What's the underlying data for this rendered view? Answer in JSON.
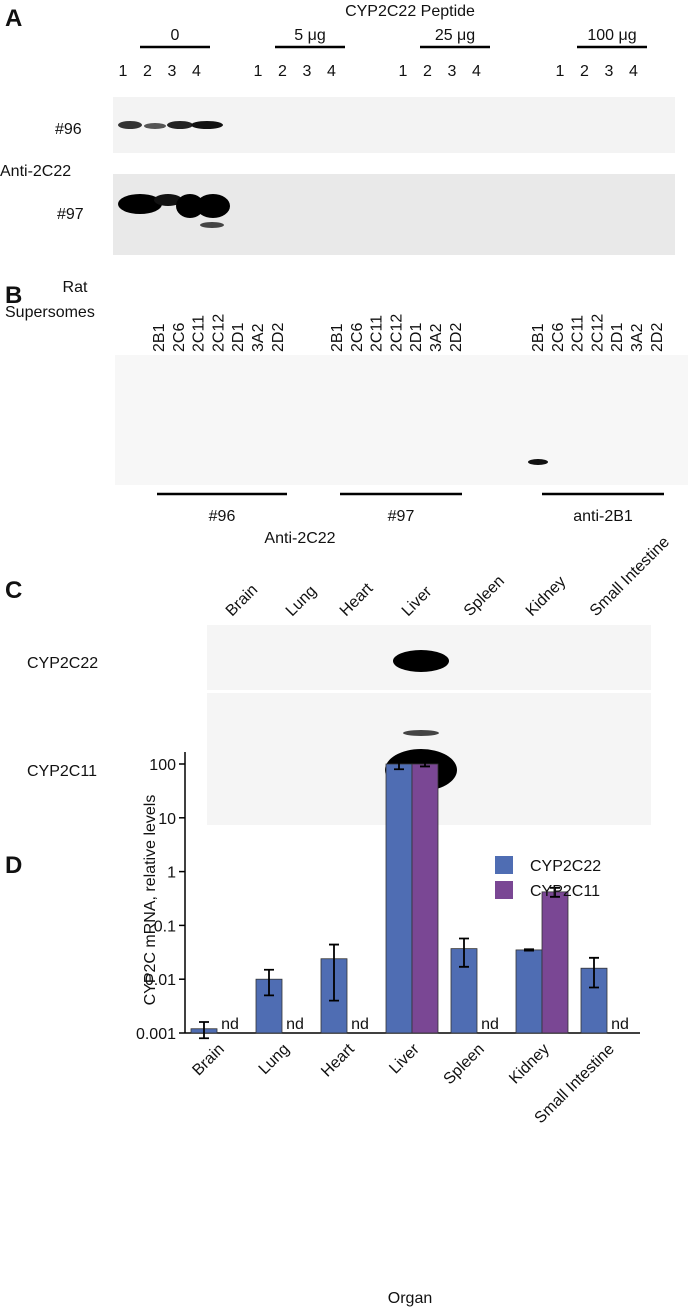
{
  "panel_a": {
    "label": "A",
    "title": "CYP2C22 Peptide",
    "groups": [
      {
        "label": "0",
        "lanes": [
          "1",
          "2",
          "3",
          "4"
        ]
      },
      {
        "label": "5 μg",
        "lanes": [
          "1",
          "2",
          "3",
          "4"
        ]
      },
      {
        "label": "25 μg",
        "lanes": [
          "1",
          "2",
          "3",
          "4"
        ]
      },
      {
        "label": "100 μg",
        "lanes": [
          "1",
          "2",
          "3",
          "4"
        ]
      }
    ],
    "rows": [
      "#96",
      "#97"
    ],
    "antibody": "Anti-2C22"
  },
  "panel_b": {
    "label": "B",
    "header": [
      "Rat",
      "Supersomes"
    ],
    "groups": [
      {
        "label": "#96",
        "lanes": [
          "2B1",
          "2C6",
          "2C11",
          "2C12",
          "2D1",
          "3A2",
          "2D2"
        ]
      },
      {
        "label": "#97",
        "lanes": [
          "2B1",
          "2C6",
          "2C11",
          "2C12",
          "2D1",
          "3A2",
          "2D2"
        ]
      },
      {
        "label": "anti-2B1",
        "lanes": [
          "2B1",
          "2C6",
          "2C11",
          "2C12",
          "2D1",
          "3A2",
          "2D2"
        ]
      }
    ],
    "antibody": "Anti-2C22"
  },
  "panel_c": {
    "label": "C",
    "tissues": [
      "Brain",
      "Lung",
      "Heart",
      "Liver",
      "Spleen",
      "Kidney",
      "Small Intestine"
    ],
    "rows": [
      "CYP2C22",
      "CYP2C11"
    ]
  },
  "chart_data": {
    "type": "bar",
    "panel_label": "D",
    "x_label": "Organ",
    "y_label": "CYP2C mRNA, relative levels",
    "categories": [
      "Brain",
      "Lung",
      "Heart",
      "Liver",
      "Spleen",
      "Kidney",
      "Small Intestine"
    ],
    "series": [
      {
        "name": "CYP2C22",
        "color": "#4f6db3",
        "values": [
          0.0012,
          0.01,
          0.024,
          100,
          0.037,
          0.035,
          0.016
        ],
        "errors": [
          0.0004,
          0.005,
          0.02,
          20,
          0.02,
          0.001,
          0.009
        ]
      },
      {
        "name": "CYP2C11",
        "color": "#7a4794",
        "values": [
          null,
          null,
          null,
          100,
          null,
          0.42,
          null
        ],
        "errors": [
          null,
          null,
          null,
          10,
          null,
          0.08,
          null
        ],
        "value_labels": [
          "nd",
          "nd",
          "nd",
          null,
          "nd",
          null,
          "nd"
        ]
      }
    ],
    "ylim": [
      0.001,
      100
    ],
    "yticks": [
      100,
      10,
      1,
      0.1,
      0.01,
      0.001
    ],
    "log_scale": true,
    "legend": "right"
  }
}
